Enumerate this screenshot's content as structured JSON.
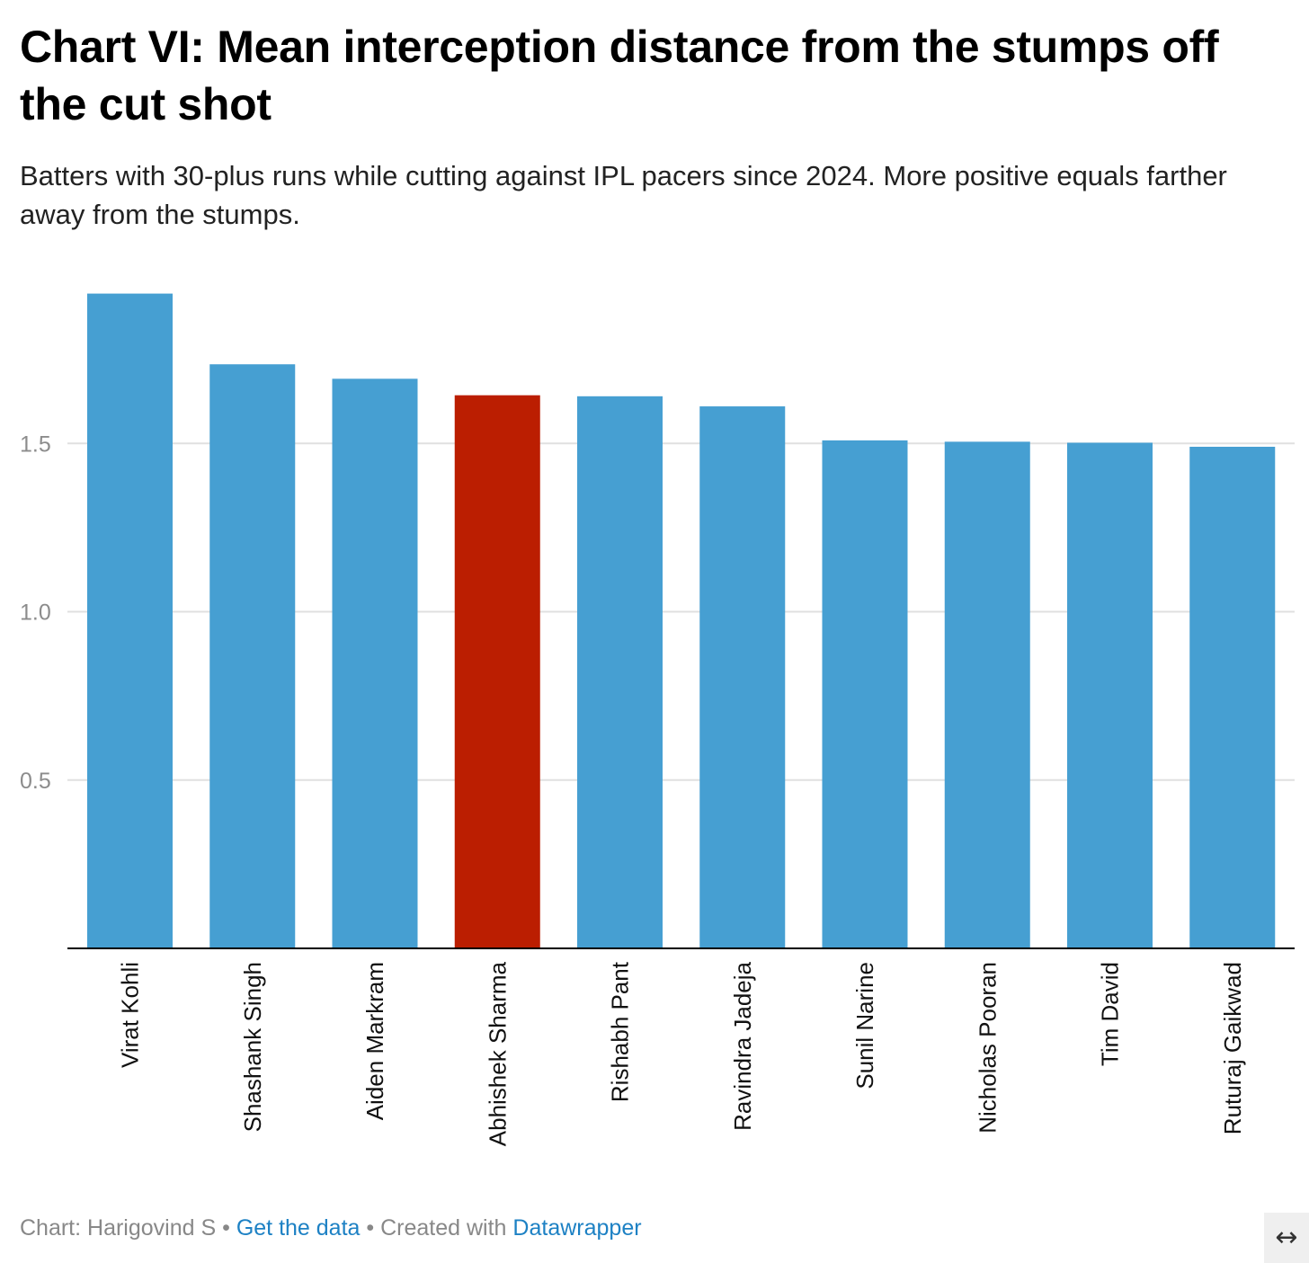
{
  "title": "Chart VI: Mean interception distance from the stumps off the cut shot",
  "subtitle": "Batters with 30-plus runs while cutting against IPL pacers since 2024. More positive equals farther away from the stumps.",
  "chart_data": {
    "type": "bar",
    "categories": [
      "Virat Kohli",
      "Shashank Singh",
      "Aiden Markram",
      "Abhishek Sharma",
      "Rishabh Pant",
      "Ravindra Jadeja",
      "Sunil Narine",
      "Nicholas Pooran",
      "Tim David",
      "Ruturaj Gaikwad"
    ],
    "values": [
      1.945,
      1.735,
      1.692,
      1.643,
      1.64,
      1.61,
      1.509,
      1.505,
      1.502,
      1.49
    ],
    "highlight_index": 3,
    "colors": {
      "bar": "#469fd2",
      "highlight": "#bb1e01",
      "grid": "#e0e0e0",
      "axis": "#000000",
      "tick": "#8c8c8c"
    },
    "yticks": [
      0.5,
      1.0,
      1.5
    ],
    "ytick_labels": [
      "0.5",
      "1.0",
      "1.5"
    ],
    "ylim": [
      0,
      2.0
    ],
    "xlabel": "",
    "ylabel": "",
    "grid": true
  },
  "footer": {
    "credit": "Chart: Harigovind S",
    "separator": "•",
    "get_data": "Get the data",
    "created_with": "Created with",
    "tool": "Datawrapper"
  },
  "expand_icon": "↔"
}
